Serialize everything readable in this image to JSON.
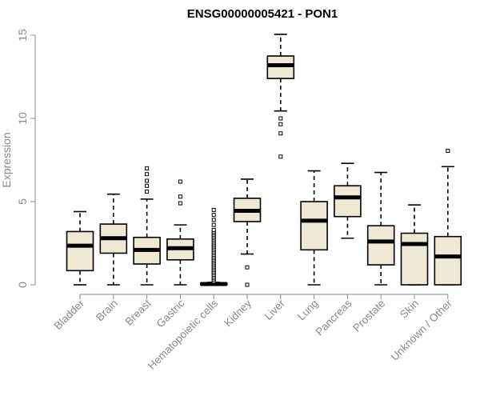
{
  "chart_data": {
    "type": "boxplot",
    "title": "ENSG00000005421 - PON1",
    "xlabel": "",
    "ylabel": "Expression",
    "ylim": [
      0,
      15
    ],
    "yticks": [
      0,
      5,
      10,
      15
    ],
    "grid": false,
    "box_color": "#EEE8D5",
    "categories": [
      "Bladder",
      "Brain",
      "Breast",
      "Gastric",
      "Hematopoietic cells",
      "Kidney",
      "Liver",
      "Lung",
      "Pancreas",
      "Prostate",
      "Skin",
      "Unknown / Other"
    ],
    "boxes": [
      {
        "category": "Bladder",
        "whisker_low": 0.0,
        "q1": 0.85,
        "median": 2.35,
        "q3": 3.2,
        "whisker_high": 4.4,
        "outliers": []
      },
      {
        "category": "Brain",
        "whisker_low": 0.0,
        "q1": 1.9,
        "median": 2.8,
        "q3": 3.65,
        "whisker_high": 5.45,
        "outliers": []
      },
      {
        "category": "Breast",
        "whisker_low": 0.0,
        "q1": 1.25,
        "median": 2.1,
        "q3": 2.85,
        "whisker_high": 5.15,
        "outliers": [
          5.6,
          5.95,
          6.25,
          6.65,
          7.0
        ]
      },
      {
        "category": "Gastric",
        "whisker_low": 0.0,
        "q1": 1.5,
        "median": 2.2,
        "q3": 2.75,
        "whisker_high": 3.6,
        "outliers": [
          4.9,
          5.3,
          6.2
        ]
      },
      {
        "category": "Hematopoietic cells",
        "whisker_low": 0.0,
        "q1": 0.0,
        "median": 0.05,
        "q3": 0.1,
        "whisker_high": 0.15,
        "outliers": [
          0.2,
          0.3,
          0.4,
          0.5,
          0.6,
          0.7,
          0.8,
          0.9,
          1.0,
          1.1,
          1.2,
          1.3,
          1.4,
          1.5,
          1.6,
          1.7,
          1.8,
          1.9,
          2.0,
          2.1,
          2.2,
          2.3,
          2.4,
          2.5,
          2.6,
          2.7,
          2.8,
          2.9,
          3.0,
          3.1,
          3.2,
          3.3,
          3.6,
          3.9,
          4.2,
          4.5
        ]
      },
      {
        "category": "Kidney",
        "whisker_low": 1.85,
        "q1": 3.8,
        "median": 4.45,
        "q3": 5.2,
        "whisker_high": 6.35,
        "outliers": [
          0.0,
          1.05
        ]
      },
      {
        "category": "Liver",
        "whisker_low": 10.45,
        "q1": 12.4,
        "median": 13.2,
        "q3": 13.75,
        "whisker_high": 15.05,
        "outliers": [
          7.7,
          9.1,
          9.65,
          10.0
        ]
      },
      {
        "category": "Lung",
        "whisker_low": 0.0,
        "q1": 2.1,
        "median": 3.85,
        "q3": 5.0,
        "whisker_high": 6.85,
        "outliers": []
      },
      {
        "category": "Pancreas",
        "whisker_low": 2.8,
        "q1": 4.1,
        "median": 5.25,
        "q3": 5.95,
        "whisker_high": 7.3,
        "outliers": []
      },
      {
        "category": "Prostate",
        "whisker_low": 0.0,
        "q1": 1.2,
        "median": 2.6,
        "q3": 3.55,
        "whisker_high": 6.75,
        "outliers": []
      },
      {
        "category": "Skin",
        "whisker_low": 0.0,
        "q1": 0.0,
        "median": 2.45,
        "q3": 3.1,
        "whisker_high": 4.8,
        "outliers": []
      },
      {
        "category": "Unknown / Other",
        "whisker_low": 0.0,
        "q1": 0.0,
        "median": 1.7,
        "q3": 2.9,
        "whisker_high": 7.1,
        "outliers": [
          8.05
        ]
      }
    ]
  }
}
